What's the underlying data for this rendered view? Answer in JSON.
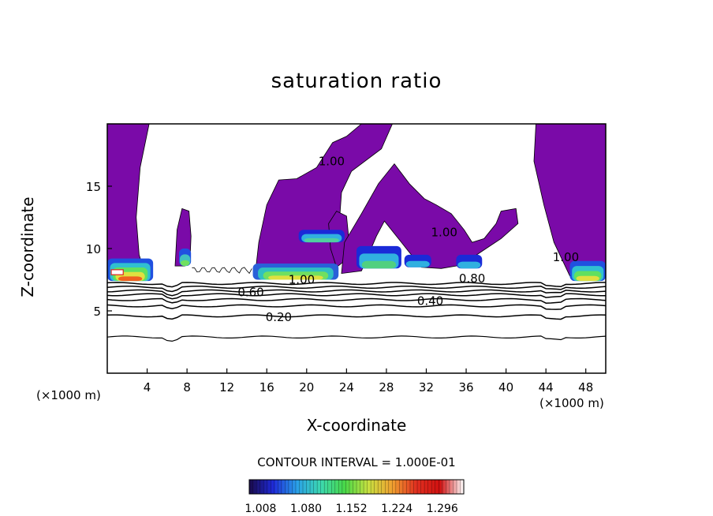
{
  "chart_data": {
    "type": "contour",
    "title": "saturation ratio",
    "xlabel": "X-coordinate",
    "ylabel": "Z-coordinate",
    "x_unit": "(×1000 m)",
    "x_ticks": [
      4,
      8,
      12,
      16,
      20,
      24,
      28,
      32,
      36,
      40,
      44,
      48
    ],
    "y_ticks": [
      5,
      10,
      15
    ],
    "xlim": [
      0,
      50
    ],
    "ylim": [
      0,
      20
    ],
    "contour_interval_label": "CONTOUR INTERVAL = 1.000E-01",
    "contour_interval": 0.1,
    "contour_labels": [
      {
        "text": "0.20",
        "x": 17.2,
        "y": 4.5
      },
      {
        "text": "0.40",
        "x": 32.4,
        "y": 5.8
      },
      {
        "text": "0.60",
        "x": 14.4,
        "y": 6.5
      },
      {
        "text": "0.80",
        "x": 36.6,
        "y": 7.6
      },
      {
        "text": "1.00",
        "x": 19.5,
        "y": 7.5
      },
      {
        "text": "1.00",
        "x": 22.5,
        "y": 17.0
      },
      {
        "text": "1.00",
        "x": 33.8,
        "y": 11.3
      },
      {
        "text": "1.00",
        "x": 46.0,
        "y": 9.3
      }
    ],
    "contour_lines": [
      {
        "level": 0.1,
        "z": 2.9
      },
      {
        "level": 0.2,
        "z": 4.6
      },
      {
        "level": 0.3,
        "z": 5.4
      },
      {
        "level": 0.4,
        "z": 5.9
      },
      {
        "level": 0.5,
        "z": 6.3
      },
      {
        "level": 0.6,
        "z": 6.6
      },
      {
        "level": 0.7,
        "z": 6.9
      },
      {
        "level": 0.8,
        "z": 7.2
      }
    ],
    "colorbar": {
      "ticks": [
        "1.008",
        "1.080",
        "1.152",
        "1.224",
        "1.296"
      ],
      "min": 0.99,
      "max": 1.33,
      "colors": [
        "#1a0a4a",
        "#1e2ad8",
        "#2aa0e8",
        "#3cd8b0",
        "#48d848",
        "#c8e040",
        "#f0a030",
        "#e03020",
        "#d01010",
        "#ffffff"
      ]
    },
    "fill_color_supersat_base": "#7a0aa8"
  }
}
